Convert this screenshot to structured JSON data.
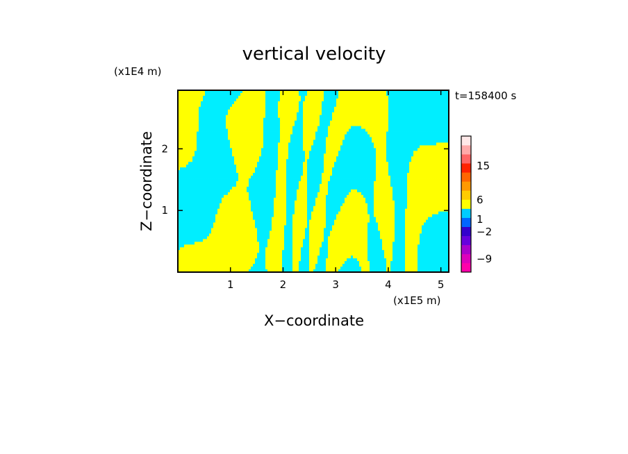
{
  "chart_data": {
    "type": "heatmap",
    "title": "vertical velocity",
    "xlabel": "X−coordinate",
    "ylabel": "Z−coordinate",
    "x_unit": "(x1E5 m)",
    "y_unit": "(x1E4 m)",
    "time_label": "t=158400 s",
    "xlim": [
      0,
      5.15
    ],
    "ylim": [
      0,
      2.95
    ],
    "x_ticks": [
      1,
      2,
      3,
      4,
      5
    ],
    "x_tick_labels": [
      "1",
      "2",
      "3",
      "4",
      "5"
    ],
    "y_ticks": [
      1,
      2
    ],
    "y_tick_labels": [
      "1",
      "2"
    ],
    "field_colors": {
      "positive": "#ffff00",
      "negative": "#00eeff"
    },
    "colorbar": {
      "levels": [
        -9,
        -2,
        1,
        6,
        15
      ],
      "level_labels": [
        "15",
        "6",
        "1",
        "−2",
        "−9"
      ],
      "colors_bottom_to_top": [
        "#ff00aa",
        "#dd00bb",
        "#aa00cc",
        "#6600dd",
        "#3300cc",
        "#0066ff",
        "#00ccff",
        "#ffff00",
        "#ffcc00",
        "#ff9900",
        "#ff6600",
        "#ff2200",
        "#ff6666",
        "#ffaaaa",
        "#ffe8e8"
      ]
    }
  }
}
